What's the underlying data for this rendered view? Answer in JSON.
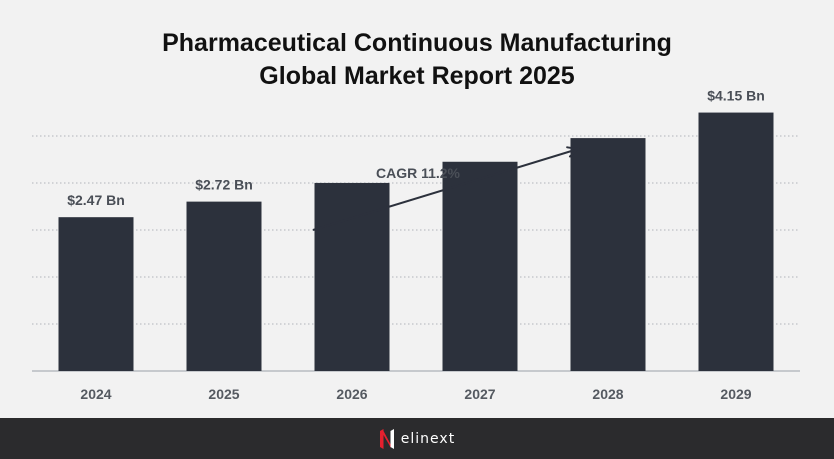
{
  "title": {
    "line1": "Pharmaceutical Continuous Manufacturing",
    "line2": "Global Market Report 2025"
  },
  "chart_data": {
    "type": "bar",
    "categories": [
      "2024",
      "2025",
      "2026",
      "2027",
      "2028",
      "2029"
    ],
    "values": [
      2.47,
      2.72,
      3.02,
      3.36,
      3.74,
      4.15
    ],
    "data_labels": [
      "$2.47 Bn",
      "$2.72 Bn",
      "",
      "",
      "",
      "$4.15 Bn"
    ],
    "unit": "$ Bn",
    "ylim": [
      0,
      4.4
    ],
    "grid": true,
    "annotation": "CAGR 11.2%",
    "title": "Pharmaceutical Continuous Manufacturing Global Market Report 2025",
    "xlabel": "",
    "ylabel": ""
  },
  "colors": {
    "bar": "#2c313c",
    "background": "#f2f2f2",
    "footer": "#2b2b2d",
    "logo_accent": "#e5202e"
  },
  "footer": {
    "logo_icon": "elinext-logo-icon",
    "logo_text": "elinext"
  }
}
